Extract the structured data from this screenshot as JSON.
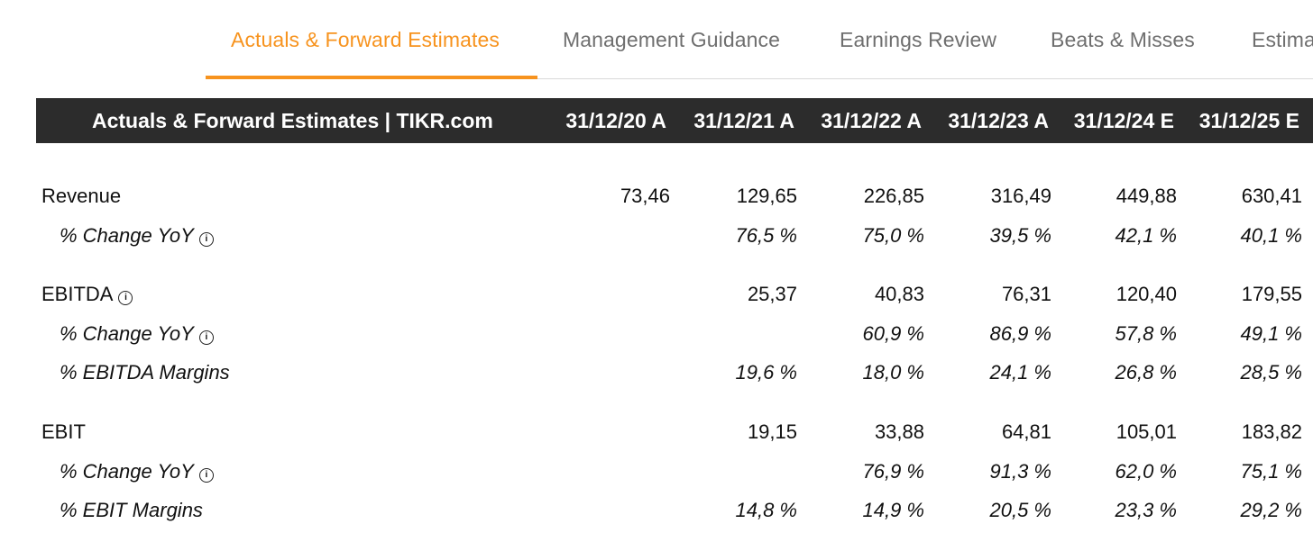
{
  "tabs": [
    {
      "label": "Actuals & Forward Estimates",
      "active": true
    },
    {
      "label": "Management Guidance",
      "active": false
    },
    {
      "label": "Earnings Review",
      "active": false
    },
    {
      "label": "Beats & Misses",
      "active": false
    },
    {
      "label": "Estima",
      "active": false
    }
  ],
  "table": {
    "title": "Actuals & Forward Estimates | TIKR.com",
    "columns": [
      "31/12/20 A",
      "31/12/21 A",
      "31/12/22 A",
      "31/12/23 A",
      "31/12/24 E",
      "31/12/25 E"
    ],
    "rows": [
      {
        "label": "Revenue",
        "sub": false,
        "info": false,
        "values": [
          "73,46",
          "129,65",
          "226,85",
          "316,49",
          "449,88",
          "630,41"
        ]
      },
      {
        "label": "% Change YoY",
        "sub": true,
        "info": true,
        "values": [
          "",
          "76,5 %",
          "75,0 %",
          "39,5 %",
          "42,1 %",
          "40,1 %"
        ]
      },
      {
        "label": "EBITDA",
        "sub": false,
        "info": true,
        "values": [
          "",
          "25,37",
          "40,83",
          "76,31",
          "120,40",
          "179,55"
        ]
      },
      {
        "label": "% Change YoY",
        "sub": true,
        "info": true,
        "values": [
          "",
          "",
          "60,9 %",
          "86,9 %",
          "57,8 %",
          "49,1 %"
        ]
      },
      {
        "label": "% EBITDA Margins",
        "sub": true,
        "info": false,
        "values": [
          "",
          "19,6 %",
          "18,0 %",
          "24,1 %",
          "26,8 %",
          "28,5 %"
        ]
      },
      {
        "label": "EBIT",
        "sub": false,
        "info": false,
        "values": [
          "",
          "19,15",
          "33,88",
          "64,81",
          "105,01",
          "183,82"
        ]
      },
      {
        "label": "% Change YoY",
        "sub": true,
        "info": true,
        "values": [
          "",
          "",
          "76,9 %",
          "91,3 %",
          "62,0 %",
          "75,1 %"
        ]
      },
      {
        "label": "% EBIT Margins",
        "sub": true,
        "info": false,
        "values": [
          "",
          "14,8 %",
          "14,9 %",
          "20,5 %",
          "23,3 %",
          "29,2 %"
        ]
      }
    ]
  },
  "colors": {
    "accent": "#f7931e",
    "header_bg": "#2c2c2c",
    "tab_inactive": "#6f6f6f"
  },
  "icons": {
    "info": "info-icon"
  }
}
